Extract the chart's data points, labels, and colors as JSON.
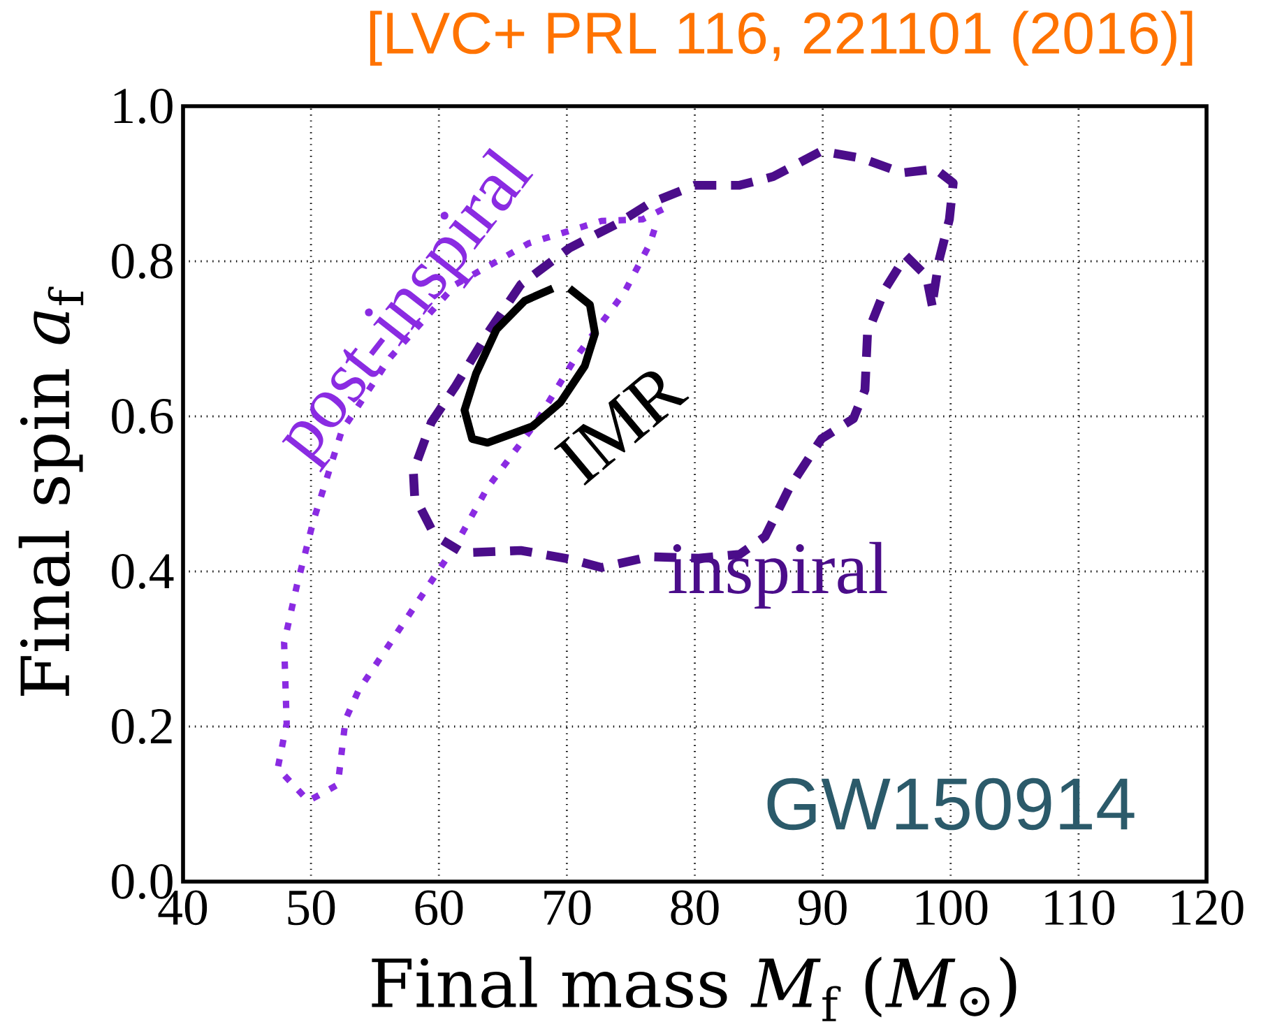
{
  "chart_data": {
    "type": "line",
    "xlabel": "Final mass *M*$_{f}$ (*M*$_{⊙}$)",
    "ylabel": "Final spin *a*$_{f}$",
    "annotations": [
      "[LVC+ PRL 116, 221101 (2016)]",
      "GW150914"
    ],
    "xlim": [
      40,
      120
    ],
    "ylim": [
      0,
      1
    ],
    "xticks": [
      40,
      50,
      60,
      70,
      80,
      90,
      100,
      110,
      120
    ],
    "yticks": [
      {
        "value": 0,
        "label": "0.0"
      },
      0.2,
      0.4,
      0.6,
      0.8,
      {
        "value": 1,
        "label": "1.0"
      }
    ],
    "grid": true,
    "marker": "none",
    "series": [
      {
        "name": "post-inspiral",
        "color": "#8a2be2",
        "line_style": "dotted",
        "x": [
          77.5,
          75.9,
          72.7,
          67.0,
          61.3,
          56.2,
          52.4,
          50.2,
          48.9,
          47.9,
          48.1,
          47.4,
          49.8,
          52.1,
          52.7,
          53.7,
          57.5,
          61.3,
          63.8,
          67.6,
          70.7,
          74.5,
          76.5,
          77.1
        ],
        "values": [
          0.867,
          0.854,
          0.852,
          0.823,
          0.77,
          0.676,
          0.581,
          0.466,
          0.382,
          0.308,
          0.204,
          0.146,
          0.104,
          0.125,
          0.209,
          0.246,
          0.34,
          0.434,
          0.508,
          0.592,
          0.676,
          0.76,
          0.823,
          0.854
        ]
      },
      {
        "name": "inspiral",
        "color": "#4b0d8a",
        "line_style": "dashed",
        "x": [
          59.4,
          58.1,
          58.0,
          59.4,
          61.3,
          63.8,
          66.4,
          70.2,
          74.0,
          76.5,
          80.0,
          83.5,
          86.1,
          89.9,
          93.0,
          96.2,
          98.8,
          100.2,
          99.9,
          99.1,
          98.6,
          98.6,
          98.1,
          96.5,
          94.9,
          93.5,
          93.3,
          92.4,
          89.9,
          87.4,
          85.5,
          83.5,
          80.3,
          76.5,
          72.7,
          70.2,
          66.4,
          61.9,
          60.3
        ],
        "values": [
          0.455,
          0.497,
          0.529,
          0.592,
          0.639,
          0.707,
          0.77,
          0.817,
          0.849,
          0.875,
          0.898,
          0.898,
          0.909,
          0.942,
          0.933,
          0.914,
          0.919,
          0.901,
          0.854,
          0.802,
          0.749,
          0.739,
          0.781,
          0.807,
          0.765,
          0.707,
          0.634,
          0.597,
          0.571,
          0.508,
          0.445,
          0.422,
          0.417,
          0.419,
          0.405,
          0.416,
          0.427,
          0.424,
          0.44
        ]
      },
      {
        "name": "IMR",
        "color": "#000000",
        "line_style": "solid",
        "x": [
          70.2,
          71.8,
          72.2,
          71.4,
          69.5,
          67.3,
          63.8,
          62.6,
          62.0,
          62.9,
          64.5,
          66.7,
          68.9
        ],
        "values": [
          0.765,
          0.744,
          0.707,
          0.665,
          0.618,
          0.587,
          0.566,
          0.571,
          0.608,
          0.655,
          0.712,
          0.749,
          0.765
        ]
      }
    ]
  }
}
